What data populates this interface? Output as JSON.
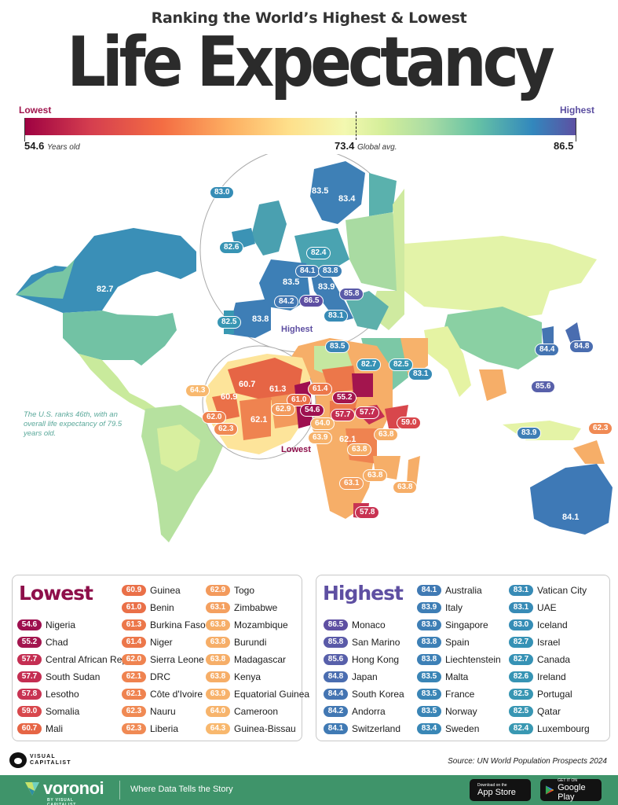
{
  "header": {
    "subtitle": "Ranking the World’s Highest & Lowest",
    "title": "Life Expectancy"
  },
  "legend": {
    "low_label": "Lowest",
    "high_label": "Highest",
    "min_value": "54.6",
    "min_unit": "Years old",
    "avg_value": "73.4",
    "avg_unit": "Global avg.",
    "max_value": "86.5",
    "colors": {
      "low": "#9e0142",
      "mid": "#f3f8b0",
      "high": "#5e4fa2"
    }
  },
  "map": {
    "labels": [
      {
        "value": "83.0",
        "place": "Iceland"
      },
      {
        "value": "83.5",
        "place": "Norway"
      },
      {
        "value": "83.4",
        "place": "Sweden"
      },
      {
        "value": "82.6",
        "place": "Ireland"
      },
      {
        "value": "82.4",
        "place": "Luxembourg"
      },
      {
        "value": "84.1",
        "place": "Switzerland"
      },
      {
        "value": "83.8",
        "place": "Liechtenstein"
      },
      {
        "value": "83.5",
        "place": "France"
      },
      {
        "value": "83.9",
        "place": "Italy"
      },
      {
        "value": "85.8",
        "place": "San Marino"
      },
      {
        "value": "84.2",
        "place": "Andorra"
      },
      {
        "value": "86.5",
        "place": "Monaco"
      },
      {
        "value": "83.8",
        "place": "Spain"
      },
      {
        "value": "82.5",
        "place": "Portugal"
      },
      {
        "value": "83.1",
        "place": "Vatican City"
      },
      {
        "value": "83.5",
        "place": "Malta"
      },
      {
        "value": "82.7",
        "place": "Canada"
      },
      {
        "value": "82.7",
        "place": "Israel"
      },
      {
        "value": "82.5",
        "place": "Qatar"
      },
      {
        "value": "83.1",
        "place": "UAE"
      },
      {
        "value": "84.4",
        "place": "South Korea"
      },
      {
        "value": "84.8",
        "place": "Japan"
      },
      {
        "value": "85.6",
        "place": "Hong Kong"
      },
      {
        "value": "83.9",
        "place": "Singapore"
      },
      {
        "value": "62.3",
        "place": "Nauru"
      },
      {
        "value": "84.1",
        "place": "Australia"
      },
      {
        "value": "60.7",
        "place": "Mali"
      },
      {
        "value": "61.3",
        "place": "Burkina Faso"
      },
      {
        "value": "61.4",
        "place": "Niger"
      },
      {
        "value": "55.2",
        "place": "Chad"
      },
      {
        "value": "64.3",
        "place": "Guinea-Bissau"
      },
      {
        "value": "60.9",
        "place": "Guinea"
      },
      {
        "value": "61.0",
        "place": "Benin"
      },
      {
        "value": "62.9",
        "place": "Togo"
      },
      {
        "value": "54.6",
        "place": "Nigeria"
      },
      {
        "value": "57.7",
        "place": "Central African Rep"
      },
      {
        "value": "57.7",
        "place": "South Sudan"
      },
      {
        "value": "59.0",
        "place": "Somalia"
      },
      {
        "value": "62.0",
        "place": "Sierra Leone"
      },
      {
        "value": "62.1",
        "place": "Côte d'Ivoire"
      },
      {
        "value": "62.3",
        "place": "Liberia"
      },
      {
        "value": "64.0",
        "place": "Cameroon"
      },
      {
        "value": "63.9",
        "place": "Equatorial Guinea"
      },
      {
        "value": "62.1",
        "place": "DRC"
      },
      {
        "value": "63.8",
        "place": "Kenya"
      },
      {
        "value": "63.8",
        "place": "Burundi"
      },
      {
        "value": "63.8",
        "place": "Mozambique"
      },
      {
        "value": "63.1",
        "place": "Zimbabwe"
      },
      {
        "value": "63.8",
        "place": "Madagascar"
      },
      {
        "value": "57.8",
        "place": "Lesotho"
      }
    ],
    "highest_callout": "Highest",
    "lowest_callout": "Lowest",
    "us_note": "The U.S. ranks 46th, with an overall life expectancy of 79.5 years old."
  },
  "lowest_panel": {
    "title": "Lowest",
    "columns": [
      [
        {
          "value": "54.6",
          "country": "Nigeria",
          "color": "#9e0f4f"
        },
        {
          "value": "55.2",
          "country": "Chad",
          "color": "#a3154e"
        },
        {
          "value": "57.7",
          "country": "Central African Rep",
          "color": "#c42e52"
        },
        {
          "value": "57.7",
          "country": "South Sudan",
          "color": "#c42e52"
        },
        {
          "value": "57.8",
          "country": "Lesotho",
          "color": "#c83352"
        },
        {
          "value": "59.0",
          "country": "Somalia",
          "color": "#d8474c"
        },
        {
          "value": "60.7",
          "country": "Mali",
          "color": "#e66545"
        }
      ],
      [
        {
          "value": "60.9",
          "country": "Guinea",
          "color": "#ea7048"
        },
        {
          "value": "61.0",
          "country": "Benin",
          "color": "#ea7048"
        },
        {
          "value": "61.3",
          "country": "Burkina Faso",
          "color": "#ec774a"
        },
        {
          "value": "61.4",
          "country": "Niger",
          "color": "#ec774a"
        },
        {
          "value": "62.0",
          "country": "Sierra Leone",
          "color": "#ef8350"
        },
        {
          "value": "62.1",
          "country": "DRC",
          "color": "#ef8350"
        },
        {
          "value": "62.1",
          "country": "Côte d'Ivoire",
          "color": "#ef8350"
        },
        {
          "value": "62.3",
          "country": "Nauru",
          "color": "#f08a54"
        },
        {
          "value": "62.3",
          "country": "Liberia",
          "color": "#f08a54"
        }
      ],
      [
        {
          "value": "62.9",
          "country": "Togo",
          "color": "#f39a5c"
        },
        {
          "value": "63.1",
          "country": "Zimbabwe",
          "color": "#f4a060"
        },
        {
          "value": "63.8",
          "country": "Mozambique",
          "color": "#f6ae68"
        },
        {
          "value": "63.8",
          "country": "Burundi",
          "color": "#f6ae68"
        },
        {
          "value": "63.8",
          "country": "Madagascar",
          "color": "#f6ae68"
        },
        {
          "value": "63.8",
          "country": "Kenya",
          "color": "#f6ae68"
        },
        {
          "value": "63.9",
          "country": "Equatorial Guinea",
          "color": "#f7b26b"
        },
        {
          "value": "64.0",
          "country": "Cameroon",
          "color": "#f7b46c"
        },
        {
          "value": "64.3",
          "country": "Guinea-Bissau",
          "color": "#f8b86e"
        }
      ]
    ]
  },
  "highest_panel": {
    "title": "Highest",
    "columns": [
      [
        {
          "value": "86.5",
          "country": "Monaco",
          "color": "#5e4fa2"
        },
        {
          "value": "85.8",
          "country": "San Marino",
          "color": "#5a5aa8"
        },
        {
          "value": "85.6",
          "country": "Hong Kong",
          "color": "#5860aa"
        },
        {
          "value": "84.8",
          "country": "Japan",
          "color": "#4a6db0"
        },
        {
          "value": "84.4",
          "country": "South Korea",
          "color": "#4474b2"
        },
        {
          "value": "84.2",
          "country": "Andorra",
          "color": "#4278b3"
        },
        {
          "value": "84.1",
          "country": "Switzerland",
          "color": "#407ab4"
        }
      ],
      [
        {
          "value": "84.1",
          "country": "Australia",
          "color": "#407ab4"
        },
        {
          "value": "83.9",
          "country": "Italy",
          "color": "#3e7eb5"
        },
        {
          "value": "83.9",
          "country": "Singapore",
          "color": "#3e7eb5"
        },
        {
          "value": "83.8",
          "country": "Spain",
          "color": "#3d80b6"
        },
        {
          "value": "83.8",
          "country": "Liechtenstein",
          "color": "#3d80b6"
        },
        {
          "value": "83.5",
          "country": "Malta",
          "color": "#3a85b6"
        },
        {
          "value": "83.5",
          "country": "France",
          "color": "#3a85b6"
        },
        {
          "value": "83.5",
          "country": "Norway",
          "color": "#3a85b6"
        },
        {
          "value": "83.4",
          "country": "Sweden",
          "color": "#3987b6"
        }
      ],
      [
        {
          "value": "83.1",
          "country": "Vatican City",
          "color": "#378bb6"
        },
        {
          "value": "83.1",
          "country": "UAE",
          "color": "#378bb6"
        },
        {
          "value": "83.0",
          "country": "Iceland",
          "color": "#368db6"
        },
        {
          "value": "82.7",
          "country": "Israel",
          "color": "#3692b5"
        },
        {
          "value": "82.7",
          "country": "Canada",
          "color": "#3692b5"
        },
        {
          "value": "82.6",
          "country": "Ireland",
          "color": "#3794b4"
        },
        {
          "value": "82.5",
          "country": "Portugal",
          "color": "#3896b3"
        },
        {
          "value": "82.5",
          "country": "Qatar",
          "color": "#3896b3"
        },
        {
          "value": "82.4",
          "country": "Luxembourg",
          "color": "#3998b2"
        }
      ]
    ]
  },
  "footer": {
    "brand_line1": "VISUAL",
    "brand_line2": "CAPITALIST",
    "source": "Source: UN World Population Prospects 2024",
    "voronoi_name": "voronoi",
    "voronoi_by": "BY VISUAL CAPITALIST",
    "tagline": "Where Data Tells the Story",
    "app_store_small": "Download on the",
    "app_store_big": "App Store",
    "google_small": "GET IT ON",
    "google_big": "Google Play"
  },
  "chart_data": {
    "type": "choropleth",
    "title": "Ranking the World’s Highest & Lowest Life Expectancy",
    "unit": "years",
    "scale": {
      "min": 54.6,
      "global_avg": 73.4,
      "max": 86.5
    },
    "lowest": [
      {
        "country": "Nigeria",
        "value": 54.6
      },
      {
        "country": "Chad",
        "value": 55.2
      },
      {
        "country": "Central African Rep",
        "value": 57.7
      },
      {
        "country": "South Sudan",
        "value": 57.7
      },
      {
        "country": "Lesotho",
        "value": 57.8
      },
      {
        "country": "Somalia",
        "value": 59.0
      },
      {
        "country": "Mali",
        "value": 60.7
      },
      {
        "country": "Guinea",
        "value": 60.9
      },
      {
        "country": "Benin",
        "value": 61.0
      },
      {
        "country": "Burkina Faso",
        "value": 61.3
      },
      {
        "country": "Niger",
        "value": 61.4
      },
      {
        "country": "Sierra Leone",
        "value": 62.0
      },
      {
        "country": "DRC",
        "value": 62.1
      },
      {
        "country": "Côte d'Ivoire",
        "value": 62.1
      },
      {
        "country": "Nauru",
        "value": 62.3
      },
      {
        "country": "Liberia",
        "value": 62.3
      },
      {
        "country": "Togo",
        "value": 62.9
      },
      {
        "country": "Zimbabwe",
        "value": 63.1
      },
      {
        "country": "Mozambique",
        "value": 63.8
      },
      {
        "country": "Burundi",
        "value": 63.8
      },
      {
        "country": "Madagascar",
        "value": 63.8
      },
      {
        "country": "Kenya",
        "value": 63.8
      },
      {
        "country": "Equatorial Guinea",
        "value": 63.9
      },
      {
        "country": "Cameroon",
        "value": 64.0
      },
      {
        "country": "Guinea-Bissau",
        "value": 64.3
      }
    ],
    "highest": [
      {
        "country": "Monaco",
        "value": 86.5
      },
      {
        "country": "San Marino",
        "value": 85.8
      },
      {
        "country": "Hong Kong",
        "value": 85.6
      },
      {
        "country": "Japan",
        "value": 84.8
      },
      {
        "country": "South Korea",
        "value": 84.4
      },
      {
        "country": "Andorra",
        "value": 84.2
      },
      {
        "country": "Switzerland",
        "value": 84.1
      },
      {
        "country": "Australia",
        "value": 84.1
      },
      {
        "country": "Italy",
        "value": 83.9
      },
      {
        "country": "Singapore",
        "value": 83.9
      },
      {
        "country": "Spain",
        "value": 83.8
      },
      {
        "country": "Liechtenstein",
        "value": 83.8
      },
      {
        "country": "Malta",
        "value": 83.5
      },
      {
        "country": "France",
        "value": 83.5
      },
      {
        "country": "Norway",
        "value": 83.5
      },
      {
        "country": "Sweden",
        "value": 83.4
      },
      {
        "country": "Vatican City",
        "value": 83.1
      },
      {
        "country": "UAE",
        "value": 83.1
      },
      {
        "country": "Iceland",
        "value": 83.0
      },
      {
        "country": "Israel",
        "value": 82.7
      },
      {
        "country": "Canada",
        "value": 82.7
      },
      {
        "country": "Ireland",
        "value": 82.6
      },
      {
        "country": "Portugal",
        "value": 82.5
      },
      {
        "country": "Qatar",
        "value": 82.5
      },
      {
        "country": "Luxembourg",
        "value": 82.4
      }
    ],
    "annotations": [
      "The U.S. ranks 46th, with an overall life expectancy of 79.5 years old."
    ],
    "source": "UN World Population Prospects 2024"
  }
}
